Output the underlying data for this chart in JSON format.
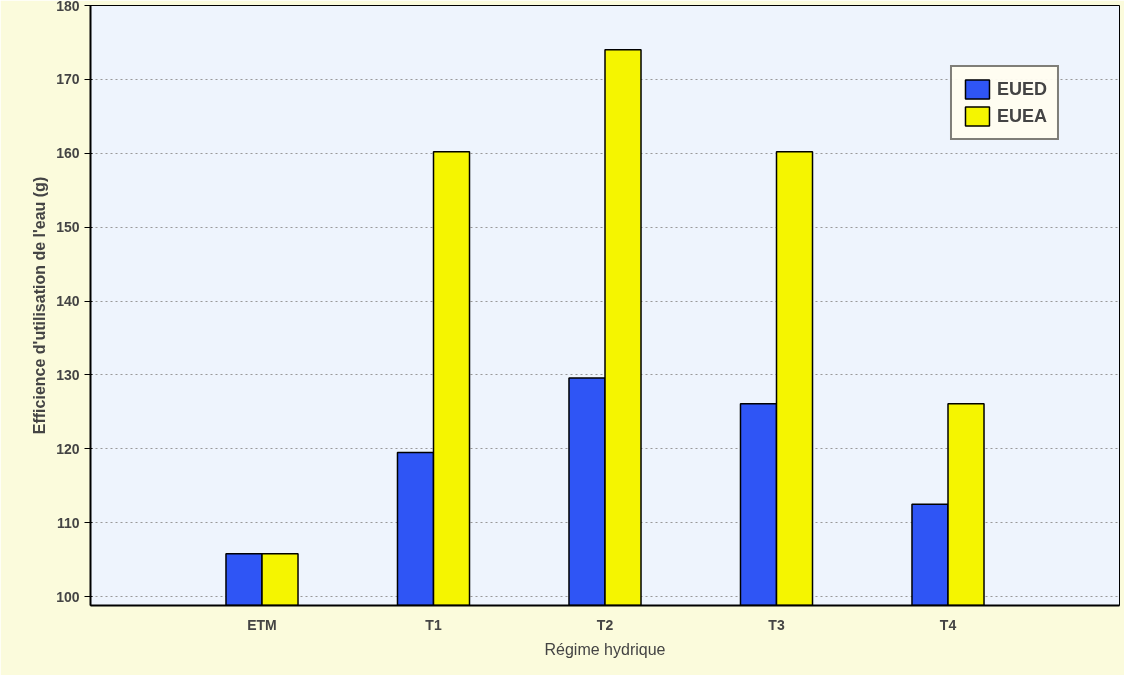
{
  "chart_data": {
    "type": "bar",
    "xlabel": "Régime hydrique",
    "ylabel": "Efficience d'utilisation de l'eau (g)",
    "categories": [
      "ETM",
      "T1",
      "T2",
      "T3",
      "T4"
    ],
    "series": [
      {
        "name": "EUED",
        "color": "#2f55f5",
        "values": [
          105.8,
          119.5,
          129.6,
          126.1,
          112.5
        ]
      },
      {
        "name": "EUEA",
        "color": "#f5f500",
        "values": [
          105.8,
          160.2,
          174,
          160.2,
          126.1
        ]
      }
    ],
    "ylim": [
      98.8,
      180
    ],
    "yticks": [
      100,
      110,
      120,
      130,
      140,
      150,
      160,
      170,
      180
    ],
    "grid": "y",
    "legend": "top right"
  }
}
